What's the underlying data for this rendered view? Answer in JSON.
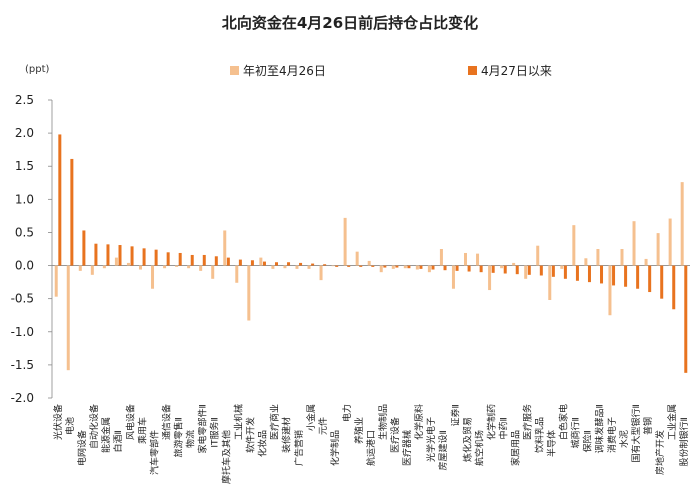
{
  "chart_data": {
    "type": "bar",
    "title": "北向资金在4月26日前后持仓占比变化",
    "unit_label": "(ppt)",
    "ylim": [
      -2.0,
      2.5
    ],
    "yticks": [
      "2.5",
      "2.0",
      "1.5",
      "1.0",
      "0.5",
      "0.0",
      "-0.5",
      "-1.0",
      "-1.5",
      "-2.0"
    ],
    "legend_placement": "top",
    "colors": {
      "series1": "#f5c08f",
      "series2": "#e8731f"
    },
    "categories": [
      "光伏设备",
      "电池",
      "电网设备",
      "自动化设备",
      "能源金属",
      "白酒Ⅱ",
      "风电设备",
      "乘用车",
      "汽车零部件",
      "通信设备",
      "旅游零售Ⅱ",
      "物流",
      "家电零部件Ⅱ",
      "IT服务Ⅱ",
      "摩托车及其他",
      "工业机械",
      "软件开发",
      "化妆品",
      "医疗商业",
      "装修建材",
      "广告营销",
      "小金属",
      "元件",
      "化学制品",
      "电力",
      "养殖业",
      "航运港口",
      "生物制品",
      "医疗设备",
      "医疗器械",
      "化学原料",
      "光学光电子",
      "房屋建设Ⅱ",
      "证券Ⅱ",
      "炼化及贸易",
      "航空机场",
      "化学制药",
      "中药Ⅱ",
      "家居用品",
      "医疗服务",
      "饮料乳品",
      "半导体",
      "白色家电",
      "城商行Ⅱ",
      "保险Ⅱ",
      "调味发酵品Ⅱ",
      "消费电子",
      "水泥",
      "国有大型银行Ⅱ",
      "普钢",
      "房地产开发",
      "工业金属",
      "股份制银行Ⅱ"
    ],
    "series": [
      {
        "name": "年初至4月26日",
        "values": [
          -0.47,
          -1.58,
          -0.08,
          -0.14,
          -0.04,
          0.12,
          0.04,
          -0.06,
          -0.35,
          -0.04,
          -0.02,
          -0.04,
          -0.08,
          -0.2,
          0.53,
          -0.26,
          -0.83,
          0.12,
          -0.05,
          -0.04,
          -0.05,
          -0.05,
          -0.22,
          0.0,
          0.72,
          0.21,
          0.07,
          -0.1,
          -0.05,
          -0.04,
          -0.06,
          -0.1,
          0.25,
          -0.35,
          0.19,
          0.18,
          -0.37,
          -0.04,
          0.04,
          -0.2,
          0.3,
          -0.52,
          -0.05,
          0.61,
          0.11,
          0.25,
          -0.75,
          0.25,
          0.67,
          0.1,
          0.49,
          0.71,
          1.26
        ]
      },
      {
        "name": "4月27日以来",
        "values": [
          1.98,
          1.61,
          0.53,
          0.33,
          0.32,
          0.31,
          0.29,
          0.26,
          0.24,
          0.2,
          0.19,
          0.16,
          0.16,
          0.14,
          0.12,
          0.09,
          0.08,
          0.06,
          0.05,
          0.05,
          0.04,
          0.03,
          0.02,
          -0.02,
          -0.02,
          -0.02,
          -0.02,
          -0.03,
          -0.03,
          -0.04,
          -0.05,
          -0.06,
          -0.07,
          -0.08,
          -0.09,
          -0.1,
          -0.11,
          -0.12,
          -0.13,
          -0.14,
          -0.15,
          -0.17,
          -0.2,
          -0.23,
          -0.25,
          -0.27,
          -0.3,
          -0.32,
          -0.35,
          -0.4,
          -0.5,
          -0.66,
          -1.62
        ]
      }
    ]
  }
}
